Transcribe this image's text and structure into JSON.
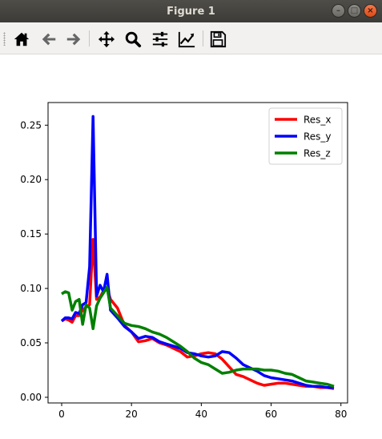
{
  "window": {
    "title": "Figure 1",
    "minimize_glyph": "–",
    "maximize_glyph": "□",
    "close_glyph": "×"
  },
  "toolbar": {
    "buttons": [
      {
        "icon": "home-icon",
        "name": "home-button"
      },
      {
        "icon": "back-arrow-icon",
        "name": "back-button"
      },
      {
        "icon": "forward-arrow-icon",
        "name": "forward-button"
      },
      {
        "icon": "pan-move-icon",
        "name": "pan-button"
      },
      {
        "icon": "zoom-magnifier-icon",
        "name": "zoom-button"
      },
      {
        "icon": "subplots-sliders-icon",
        "name": "subplots-button"
      },
      {
        "icon": "axes-edit-icon",
        "name": "edit-axes-button"
      },
      {
        "icon": "save-floppy-icon",
        "name": "save-button"
      }
    ]
  },
  "chart_data": {
    "type": "line",
    "title": "",
    "xlabel": "",
    "ylabel": "",
    "xlim": [
      -3.9,
      81.9
    ],
    "ylim": [
      -0.0052,
      0.2708
    ],
    "xticks": [
      0,
      20,
      40,
      60,
      80
    ],
    "yticks": [
      0.0,
      0.05,
      0.1,
      0.15,
      0.2,
      0.25
    ],
    "ytick_labels": [
      "0.00",
      "0.05",
      "0.10",
      "0.15",
      "0.20",
      "0.25"
    ],
    "xtick_labels": [
      "0",
      "20",
      "40",
      "60",
      "80"
    ],
    "grid": false,
    "legend": "top-right",
    "series": [
      {
        "name": "Res_x",
        "color": "#ff0000",
        "x": [
          0,
          1,
          2,
          3,
          4,
          5,
          6,
          7,
          8,
          9,
          10,
          11,
          12,
          13,
          14,
          16,
          18,
          20,
          22,
          24,
          26,
          28,
          30,
          32,
          34,
          36,
          38,
          40,
          42,
          44,
          46,
          48,
          50,
          52,
          54,
          56,
          58,
          60,
          62,
          64,
          66,
          68,
          70,
          72,
          74,
          76,
          78
        ],
        "y": [
          0.07,
          0.072,
          0.071,
          0.069,
          0.075,
          0.075,
          0.08,
          0.083,
          0.085,
          0.145,
          0.09,
          0.092,
          0.098,
          0.1,
          0.09,
          0.082,
          0.066,
          0.06,
          0.051,
          0.052,
          0.054,
          0.05,
          0.048,
          0.045,
          0.042,
          0.037,
          0.038,
          0.04,
          0.041,
          0.04,
          0.035,
          0.028,
          0.021,
          0.019,
          0.016,
          0.013,
          0.011,
          0.012,
          0.013,
          0.013,
          0.012,
          0.011,
          0.01,
          0.01,
          0.009,
          0.009,
          0.008
        ]
      },
      {
        "name": "Res_y",
        "color": "#0000ff",
        "x": [
          0,
          1,
          2,
          3,
          4,
          5,
          6,
          7,
          8,
          9,
          10,
          11,
          12,
          13,
          14,
          16,
          18,
          20,
          22,
          24,
          26,
          28,
          30,
          32,
          34,
          36,
          38,
          40,
          42,
          44,
          46,
          48,
          50,
          52,
          54,
          56,
          58,
          60,
          62,
          64,
          66,
          68,
          70,
          72,
          74,
          76,
          78
        ],
        "y": [
          0.07,
          0.073,
          0.073,
          0.072,
          0.078,
          0.077,
          0.085,
          0.087,
          0.12,
          0.258,
          0.093,
          0.103,
          0.097,
          0.113,
          0.08,
          0.073,
          0.065,
          0.06,
          0.054,
          0.056,
          0.055,
          0.051,
          0.049,
          0.047,
          0.045,
          0.041,
          0.04,
          0.038,
          0.037,
          0.038,
          0.042,
          0.041,
          0.036,
          0.03,
          0.027,
          0.024,
          0.02,
          0.018,
          0.017,
          0.016,
          0.015,
          0.013,
          0.011,
          0.01,
          0.01,
          0.009,
          0.009
        ]
      },
      {
        "name": "Res_z",
        "color": "#008000",
        "x": [
          0,
          1,
          2,
          3,
          4,
          5,
          6,
          7,
          8,
          9,
          10,
          11,
          12,
          13,
          14,
          16,
          18,
          20,
          22,
          24,
          26,
          28,
          30,
          32,
          34,
          36,
          38,
          40,
          42,
          44,
          46,
          48,
          50,
          52,
          54,
          56,
          58,
          60,
          62,
          64,
          66,
          68,
          70,
          72,
          74,
          76,
          78
        ],
        "y": [
          0.095,
          0.097,
          0.096,
          0.08,
          0.088,
          0.09,
          0.067,
          0.085,
          0.082,
          0.063,
          0.084,
          0.091,
          0.096,
          0.101,
          0.082,
          0.075,
          0.068,
          0.066,
          0.065,
          0.063,
          0.06,
          0.058,
          0.055,
          0.051,
          0.047,
          0.042,
          0.036,
          0.032,
          0.03,
          0.026,
          0.022,
          0.023,
          0.025,
          0.026,
          0.026,
          0.026,
          0.025,
          0.025,
          0.024,
          0.022,
          0.021,
          0.018,
          0.015,
          0.014,
          0.013,
          0.012,
          0.01
        ]
      }
    ]
  }
}
